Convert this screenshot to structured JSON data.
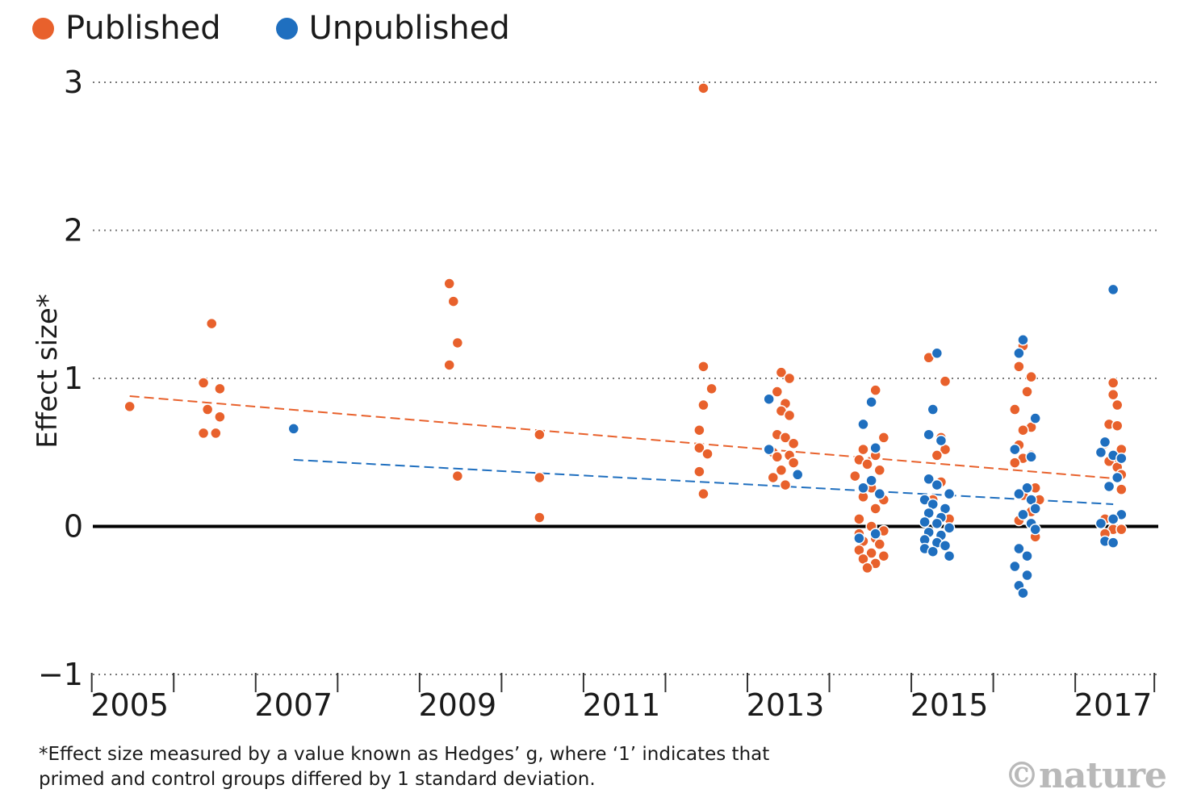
{
  "chart_data": {
    "type": "scatter",
    "title": "",
    "xlabel": "",
    "ylabel": "Effect size*",
    "xlim": [
      2004.55,
      2017.55
    ],
    "ylim": [
      -1,
      3
    ],
    "x_ticks": [
      "2005",
      "2007",
      "2009",
      "2011",
      "2013",
      "2015",
      "2017"
    ],
    "y_ticks": [
      "−1",
      "0",
      "1",
      "2",
      "3"
    ],
    "y_tick_values": [
      -1,
      0,
      1,
      2,
      3
    ],
    "grid": "dotted horizontal",
    "legend": "top-left",
    "series": [
      {
        "name": "Published",
        "color": "#e8612c",
        "trend": [
          [
            2005,
            0.88
          ],
          [
            2017.1,
            0.32
          ]
        ],
        "points": [
          [
            2005.0,
            0.81
          ],
          [
            2006.0,
            1.37
          ],
          [
            2005.9,
            0.97
          ],
          [
            2006.1,
            0.93
          ],
          [
            2005.95,
            0.79
          ],
          [
            2006.1,
            0.74
          ],
          [
            2005.9,
            0.63
          ],
          [
            2006.05,
            0.63
          ],
          [
            2008.9,
            1.64
          ],
          [
            2008.95,
            1.52
          ],
          [
            2009.0,
            1.24
          ],
          [
            2008.9,
            1.09
          ],
          [
            2009.0,
            0.34
          ],
          [
            2010.0,
            0.62
          ],
          [
            2010.0,
            0.33
          ],
          [
            2010.0,
            0.06
          ],
          [
            2012.0,
            2.96
          ],
          [
            2012.0,
            1.08
          ],
          [
            2012.1,
            0.93
          ],
          [
            2012.0,
            0.82
          ],
          [
            2011.95,
            0.65
          ],
          [
            2011.95,
            0.53
          ],
          [
            2012.05,
            0.49
          ],
          [
            2011.95,
            0.37
          ],
          [
            2012.0,
            0.22
          ],
          [
            2012.95,
            1.04
          ],
          [
            2013.05,
            1.0
          ],
          [
            2012.9,
            0.91
          ],
          [
            2013.0,
            0.83
          ],
          [
            2012.95,
            0.78
          ],
          [
            2013.05,
            0.75
          ],
          [
            2012.9,
            0.62
          ],
          [
            2013.0,
            0.6
          ],
          [
            2013.1,
            0.56
          ],
          [
            2012.85,
            0.5
          ],
          [
            2013.05,
            0.48
          ],
          [
            2012.9,
            0.47
          ],
          [
            2013.1,
            0.43
          ],
          [
            2012.95,
            0.38
          ],
          [
            2012.85,
            0.33
          ],
          [
            2013.0,
            0.28
          ],
          [
            2014.1,
            0.92
          ],
          [
            2014.2,
            0.6
          ],
          [
            2013.95,
            0.52
          ],
          [
            2014.1,
            0.48
          ],
          [
            2013.9,
            0.45
          ],
          [
            2014.0,
            0.42
          ],
          [
            2014.15,
            0.38
          ],
          [
            2013.85,
            0.34
          ],
          [
            2014.05,
            0.26
          ],
          [
            2014.2,
            0.18
          ],
          [
            2013.95,
            0.2
          ],
          [
            2014.1,
            0.12
          ],
          [
            2013.9,
            0.05
          ],
          [
            2014.05,
            0.0
          ],
          [
            2014.2,
            -0.03
          ],
          [
            2013.9,
            -0.05
          ],
          [
            2014.1,
            -0.08
          ],
          [
            2013.95,
            -0.1
          ],
          [
            2014.15,
            -0.12
          ],
          [
            2013.9,
            -0.16
          ],
          [
            2014.05,
            -0.18
          ],
          [
            2014.2,
            -0.2
          ],
          [
            2013.95,
            -0.22
          ],
          [
            2014.1,
            -0.25
          ],
          [
            2014.0,
            -0.28
          ],
          [
            2014.75,
            1.14
          ],
          [
            2014.95,
            0.98
          ],
          [
            2014.9,
            0.6
          ],
          [
            2014.95,
            0.52
          ],
          [
            2014.85,
            0.48
          ],
          [
            2014.9,
            0.3
          ],
          [
            2014.8,
            0.18
          ],
          [
            2015.0,
            0.05
          ],
          [
            2014.9,
            -0.07
          ],
          [
            2015.9,
            1.22
          ],
          [
            2015.85,
            1.08
          ],
          [
            2016.0,
            1.01
          ],
          [
            2015.95,
            0.91
          ],
          [
            2015.8,
            0.79
          ],
          [
            2016.0,
            0.67
          ],
          [
            2015.9,
            0.65
          ],
          [
            2015.85,
            0.55
          ],
          [
            2016.0,
            0.48
          ],
          [
            2015.9,
            0.46
          ],
          [
            2015.8,
            0.43
          ],
          [
            2016.05,
            0.26
          ],
          [
            2015.9,
            0.21
          ],
          [
            2016.1,
            0.18
          ],
          [
            2016.0,
            0.1
          ],
          [
            2015.85,
            0.04
          ],
          [
            2016.05,
            -0.07
          ],
          [
            2017.0,
            0.97
          ],
          [
            2017.0,
            0.89
          ],
          [
            2017.05,
            0.82
          ],
          [
            2016.95,
            0.69
          ],
          [
            2017.05,
            0.68
          ],
          [
            2016.9,
            0.56
          ],
          [
            2017.1,
            0.52
          ],
          [
            2017.0,
            0.46
          ],
          [
            2016.95,
            0.44
          ],
          [
            2017.05,
            0.4
          ],
          [
            2017.1,
            0.35
          ],
          [
            2017.1,
            0.25
          ],
          [
            2016.9,
            0.05
          ],
          [
            2017.0,
            -0.02
          ],
          [
            2017.1,
            -0.02
          ],
          [
            2016.9,
            -0.05
          ]
        ]
      },
      {
        "name": "Unpublished",
        "color": "#1f6fbf",
        "trend": [
          [
            2007,
            0.45
          ],
          [
            2017.0,
            0.15
          ]
        ],
        "points": [
          [
            2007.0,
            0.66
          ],
          [
            2012.8,
            0.86
          ],
          [
            2012.8,
            0.52
          ],
          [
            2013.15,
            0.35
          ],
          [
            2014.05,
            0.84
          ],
          [
            2013.95,
            0.69
          ],
          [
            2014.1,
            0.53
          ],
          [
            2014.05,
            0.31
          ],
          [
            2013.95,
            0.26
          ],
          [
            2014.15,
            0.22
          ],
          [
            2013.9,
            -0.08
          ],
          [
            2014.1,
            -0.05
          ],
          [
            2014.85,
            1.17
          ],
          [
            2014.8,
            0.79
          ],
          [
            2014.75,
            0.62
          ],
          [
            2014.9,
            0.58
          ],
          [
            2014.75,
            0.32
          ],
          [
            2014.85,
            0.28
          ],
          [
            2015.0,
            0.22
          ],
          [
            2014.7,
            0.18
          ],
          [
            2014.8,
            0.15
          ],
          [
            2014.95,
            0.12
          ],
          [
            2014.75,
            0.09
          ],
          [
            2014.9,
            0.06
          ],
          [
            2014.7,
            0.03
          ],
          [
            2014.85,
            0.02
          ],
          [
            2015.0,
            -0.01
          ],
          [
            2014.75,
            -0.04
          ],
          [
            2014.9,
            -0.06
          ],
          [
            2014.7,
            -0.09
          ],
          [
            2014.85,
            -0.11
          ],
          [
            2014.95,
            -0.13
          ],
          [
            2014.7,
            -0.15
          ],
          [
            2014.8,
            -0.17
          ],
          [
            2015.0,
            -0.2
          ],
          [
            2015.9,
            1.26
          ],
          [
            2015.85,
            1.17
          ],
          [
            2016.05,
            0.73
          ],
          [
            2015.8,
            0.52
          ],
          [
            2016.0,
            0.47
          ],
          [
            2015.95,
            0.26
          ],
          [
            2015.85,
            0.22
          ],
          [
            2016.0,
            0.18
          ],
          [
            2016.05,
            0.12
          ],
          [
            2015.9,
            0.08
          ],
          [
            2016.0,
            0.02
          ],
          [
            2016.05,
            -0.02
          ],
          [
            2015.85,
            -0.15
          ],
          [
            2015.95,
            -0.2
          ],
          [
            2015.8,
            -0.27
          ],
          [
            2015.95,
            -0.33
          ],
          [
            2015.85,
            -0.4
          ],
          [
            2015.9,
            -0.45
          ],
          [
            2017.0,
            1.6
          ],
          [
            2016.9,
            0.57
          ],
          [
            2016.85,
            0.5
          ],
          [
            2017.0,
            0.48
          ],
          [
            2017.1,
            0.46
          ],
          [
            2016.95,
            0.27
          ],
          [
            2017.05,
            0.33
          ],
          [
            2017.1,
            0.08
          ],
          [
            2017.0,
            0.05
          ],
          [
            2016.85,
            0.02
          ],
          [
            2016.9,
            -0.1
          ],
          [
            2017.0,
            -0.11
          ]
        ]
      }
    ]
  },
  "legend": {
    "items": [
      {
        "label": "Published",
        "color": "#e8612c"
      },
      {
        "label": "Unpublished",
        "color": "#1f6fbf"
      }
    ]
  },
  "footnote": {
    "line1": "*Effect size measured by a value known as Hedges’ g, where ‘1’ indicates that",
    "line2": "primed and control groups differed by 1 standard deviation."
  },
  "credit": "©nature"
}
